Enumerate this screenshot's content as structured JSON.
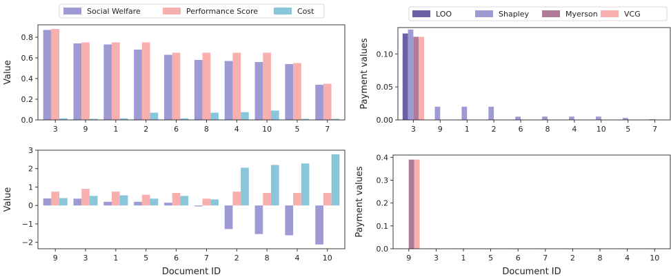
{
  "chart_data": [
    {
      "type": "bar",
      "position": "top-left",
      "categories": [
        "3",
        "9",
        "1",
        "2",
        "6",
        "8",
        "4",
        "10",
        "5",
        "7"
      ],
      "series": [
        {
          "name": "Social Welfare",
          "color": "#9e9ad4",
          "values": [
            0.87,
            0.74,
            0.73,
            0.68,
            0.63,
            0.58,
            0.57,
            0.56,
            0.54,
            0.34
          ]
        },
        {
          "name": "Performance Score",
          "color": "#f7b0ad",
          "values": [
            0.88,
            0.75,
            0.75,
            0.75,
            0.65,
            0.65,
            0.65,
            0.65,
            0.55,
            0.35
          ]
        },
        {
          "name": "Cost",
          "color": "#8ac6da",
          "values": [
            0.015,
            0.01,
            0.015,
            0.07,
            0.015,
            0.07,
            0.075,
            0.09,
            0.01,
            0.01
          ]
        }
      ],
      "ylabel": "Value",
      "xlabel": "",
      "ylim": [
        0,
        0.92
      ],
      "yticks": [
        "0.0",
        "0.2",
        "0.4",
        "0.6",
        "0.8"
      ],
      "legend": "top-center"
    },
    {
      "type": "bar",
      "position": "top-right",
      "categories": [
        "3",
        "9",
        "1",
        "2",
        "6",
        "8",
        "4",
        "10",
        "5",
        "7"
      ],
      "series": [
        {
          "name": "LOO",
          "color": "#6c5fa3",
          "values": [
            0.131,
            0.0,
            0.0,
            0.0,
            0.0,
            0.0,
            0.0,
            0.0,
            0.0,
            0.0
          ]
        },
        {
          "name": "Shapley",
          "color": "#9e9ad4",
          "values": [
            0.137,
            0.02,
            0.02,
            0.02,
            0.005,
            0.005,
            0.005,
            0.005,
            0.003,
            0.001
          ]
        },
        {
          "name": "Myerson",
          "color": "#b07a98",
          "values": [
            0.126,
            0.0,
            0.0,
            0.0,
            0.0,
            0.0,
            0.0,
            0.0,
            0.0,
            0.0
          ]
        },
        {
          "name": "VCG",
          "color": "#f7b0ad",
          "values": [
            0.126,
            0.0,
            0.0,
            0.0,
            0.0,
            0.0,
            0.0,
            0.0,
            0.0,
            0.0
          ]
        }
      ],
      "ylabel": "Payment values",
      "xlabel": "",
      "ylim": [
        0,
        0.14
      ],
      "yticks": [
        "0.00",
        "0.05",
        "0.10"
      ],
      "legend": "top-center"
    },
    {
      "type": "bar",
      "position": "bottom-left",
      "categories": [
        "9",
        "3",
        "1",
        "5",
        "6",
        "7",
        "2",
        "8",
        "4",
        "10"
      ],
      "series": [
        {
          "name": "Social Welfare",
          "color": "#9e9ad4",
          "values": [
            0.38,
            0.37,
            0.2,
            0.2,
            0.15,
            -0.05,
            -1.28,
            -1.55,
            -1.62,
            -2.12
          ]
        },
        {
          "name": "Performance Score",
          "color": "#f7b0ad",
          "values": [
            0.75,
            0.9,
            0.75,
            0.58,
            0.68,
            0.37,
            0.75,
            0.68,
            0.68,
            0.68
          ]
        },
        {
          "name": "Cost",
          "color": "#8ac6da",
          "values": [
            0.4,
            0.52,
            0.55,
            0.37,
            0.52,
            0.33,
            2.05,
            2.2,
            2.28,
            2.78
          ]
        }
      ],
      "ylabel": "Value",
      "xlabel": "Document ID",
      "ylim": [
        -2.35,
        3
      ],
      "yticks": [
        "−2",
        "−1",
        "0",
        "1",
        "2",
        "3"
      ]
    },
    {
      "type": "bar",
      "position": "bottom-right",
      "categories": [
        "9",
        "3",
        "1",
        "5",
        "6",
        "7",
        "2",
        "8",
        "4",
        "10"
      ],
      "series": [
        {
          "name": "LOO",
          "color": "#6c5fa3",
          "values": [
            0,
            0,
            0,
            0,
            0,
            0,
            0,
            0,
            0,
            0
          ]
        },
        {
          "name": "Shapley",
          "color": "#9e9ad4",
          "values": [
            0,
            0,
            0,
            0,
            0,
            0,
            0,
            0,
            0,
            0
          ]
        },
        {
          "name": "Myerson",
          "color": "#b07a98",
          "values": [
            0.39,
            0,
            0,
            0,
            0,
            0,
            0,
            0,
            0,
            0
          ]
        },
        {
          "name": "VCG",
          "color": "#f7b0ad",
          "values": [
            0.39,
            0,
            0,
            0,
            0,
            0,
            0,
            0,
            0,
            0
          ]
        }
      ],
      "ylabel": "Payment values",
      "xlabel": "Document ID",
      "ylim": [
        0,
        0.41
      ],
      "yticks": [
        "0.0",
        "0.1",
        "0.2",
        "0.3",
        "0.4"
      ]
    }
  ]
}
